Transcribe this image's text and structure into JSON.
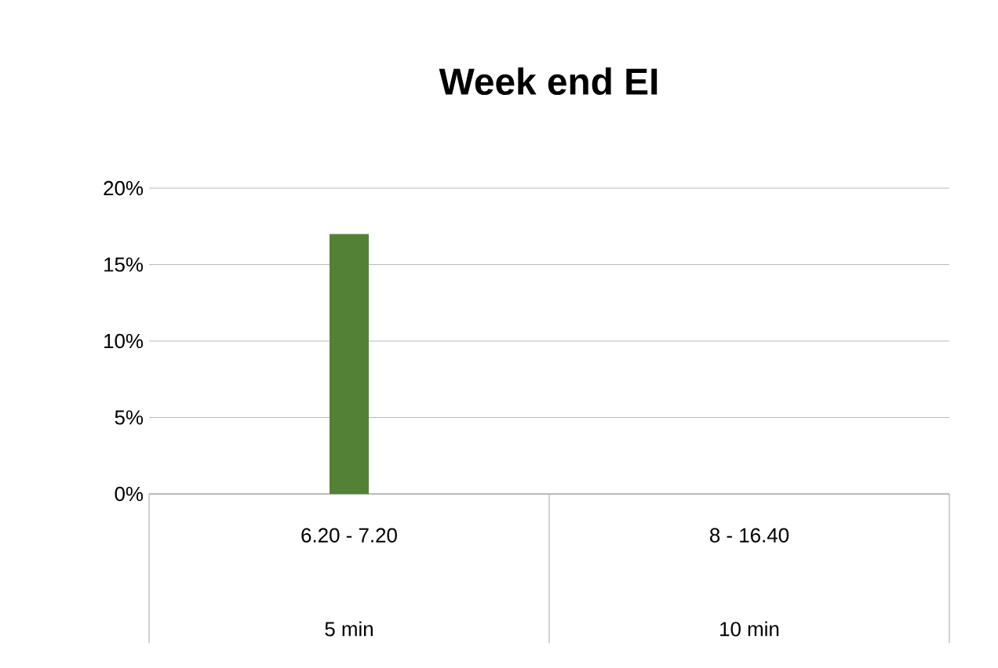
{
  "chart_data": {
    "type": "bar",
    "title": "Week end EI",
    "categories": [
      "6.20 - 7.20",
      "8 - 16.40"
    ],
    "values": [
      17,
      null
    ],
    "color": "#538135",
    "ylim": [
      0,
      20
    ],
    "yticks": [
      {
        "value": 0,
        "label": "0%"
      },
      {
        "value": 5,
        "label": "5%"
      },
      {
        "value": 10,
        "label": "10%"
      },
      {
        "value": 15,
        "label": "15%"
      },
      {
        "value": 20,
        "label": "20%"
      }
    ],
    "grid": "y",
    "annotations": [
      "5 min",
      "10 min"
    ]
  }
}
